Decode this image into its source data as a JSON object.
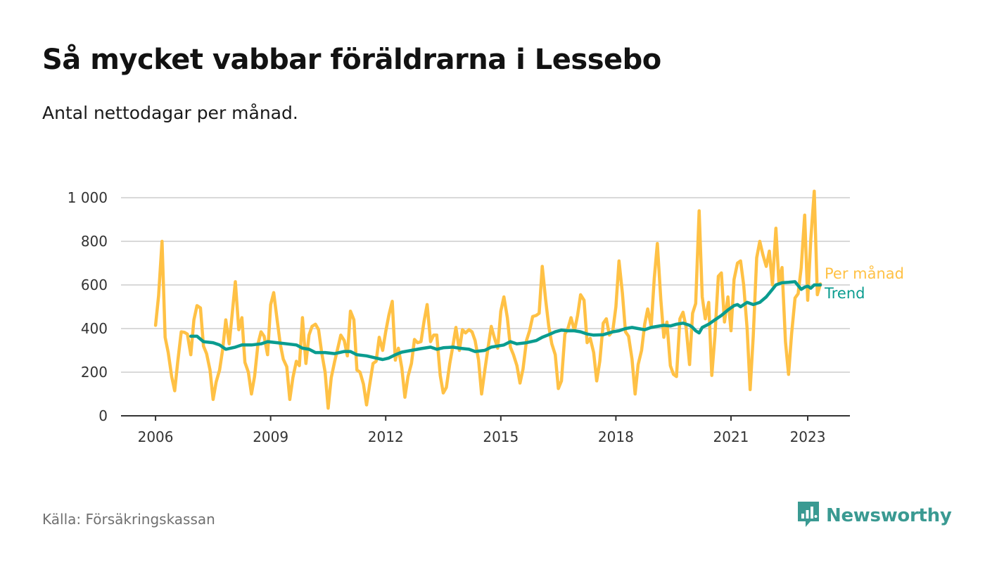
{
  "title": "Så mycket vabbar föräldrarna i Lessebo",
  "subtitle": "Antal nettodagar per månad.",
  "source": "Källa: Försäkringskassan",
  "brand": {
    "name": "Newsworthy",
    "icon": "newsworthy-logo-icon"
  },
  "colors": {
    "monthly": "#ffc145",
    "trend": "#0a9c8f",
    "grid": "#d9d9d9",
    "axis": "#333333"
  },
  "chart_data": {
    "type": "line",
    "x_unit": "decimal year",
    "ylim": [
      0,
      1000
    ],
    "xlim": [
      2005.1,
      2024.1
    ],
    "y_ticks": [
      0,
      200,
      400,
      600,
      800,
      1000
    ],
    "y_tick_labels": [
      "0",
      "200",
      "400",
      "600",
      "800",
      "1 000"
    ],
    "x_ticks": [
      2006,
      2009,
      2012,
      2015,
      2018,
      2021,
      2023
    ],
    "x_tick_labels": [
      "2006",
      "2009",
      "2012",
      "2015",
      "2018",
      "2021",
      "2023"
    ],
    "grid": "horizontal",
    "legend": "labels at right end of lines",
    "series": [
      {
        "name": "Per månad",
        "color_key": "monthly",
        "points": [
          [
            2006.0,
            415
          ],
          [
            2006.08,
            550
          ],
          [
            2006.17,
            800
          ],
          [
            2006.25,
            360
          ],
          [
            2006.33,
            290
          ],
          [
            2006.42,
            180
          ],
          [
            2006.5,
            115
          ],
          [
            2006.58,
            250
          ],
          [
            2006.67,
            385
          ],
          [
            2006.75,
            383
          ],
          [
            2006.83,
            375
          ],
          [
            2006.92,
            280
          ],
          [
            2007.0,
            440
          ],
          [
            2007.08,
            505
          ],
          [
            2007.17,
            495
          ],
          [
            2007.25,
            320
          ],
          [
            2007.33,
            285
          ],
          [
            2007.42,
            210
          ],
          [
            2007.5,
            75
          ],
          [
            2007.58,
            155
          ],
          [
            2007.67,
            210
          ],
          [
            2007.75,
            305
          ],
          [
            2007.83,
            440
          ],
          [
            2007.92,
            330
          ],
          [
            2008.0,
            470
          ],
          [
            2008.08,
            615
          ],
          [
            2008.17,
            395
          ],
          [
            2008.25,
            450
          ],
          [
            2008.33,
            245
          ],
          [
            2008.42,
            200
          ],
          [
            2008.5,
            100
          ],
          [
            2008.58,
            180
          ],
          [
            2008.67,
            330
          ],
          [
            2008.75,
            385
          ],
          [
            2008.83,
            365
          ],
          [
            2008.92,
            280
          ],
          [
            2009.0,
            510
          ],
          [
            2009.08,
            565
          ],
          [
            2009.17,
            440
          ],
          [
            2009.25,
            330
          ],
          [
            2009.33,
            260
          ],
          [
            2009.42,
            225
          ],
          [
            2009.5,
            75
          ],
          [
            2009.58,
            175
          ],
          [
            2009.67,
            250
          ],
          [
            2009.75,
            230
          ],
          [
            2009.83,
            450
          ],
          [
            2009.92,
            240
          ],
          [
            2010.0,
            370
          ],
          [
            2010.08,
            410
          ],
          [
            2010.17,
            420
          ],
          [
            2010.25,
            395
          ],
          [
            2010.33,
            290
          ],
          [
            2010.42,
            200
          ],
          [
            2010.5,
            35
          ],
          [
            2010.58,
            175
          ],
          [
            2010.67,
            250
          ],
          [
            2010.75,
            310
          ],
          [
            2010.83,
            370
          ],
          [
            2010.92,
            345
          ],
          [
            2011.0,
            275
          ],
          [
            2011.08,
            480
          ],
          [
            2011.17,
            440
          ],
          [
            2011.25,
            210
          ],
          [
            2011.33,
            200
          ],
          [
            2011.42,
            145
          ],
          [
            2011.5,
            50
          ],
          [
            2011.58,
            140
          ],
          [
            2011.67,
            240
          ],
          [
            2011.75,
            250
          ],
          [
            2011.83,
            360
          ],
          [
            2011.92,
            300
          ],
          [
            2012.0,
            385
          ],
          [
            2012.08,
            460
          ],
          [
            2012.17,
            525
          ],
          [
            2012.25,
            255
          ],
          [
            2012.33,
            310
          ],
          [
            2012.42,
            220
          ],
          [
            2012.5,
            85
          ],
          [
            2012.58,
            180
          ],
          [
            2012.67,
            240
          ],
          [
            2012.75,
            350
          ],
          [
            2012.83,
            335
          ],
          [
            2012.92,
            340
          ],
          [
            2013.0,
            435
          ],
          [
            2013.08,
            510
          ],
          [
            2013.17,
            340
          ],
          [
            2013.25,
            370
          ],
          [
            2013.33,
            370
          ],
          [
            2013.42,
            185
          ],
          [
            2013.5,
            105
          ],
          [
            2013.58,
            130
          ],
          [
            2013.67,
            240
          ],
          [
            2013.75,
            320
          ],
          [
            2013.83,
            405
          ],
          [
            2013.92,
            300
          ],
          [
            2014.0,
            395
          ],
          [
            2014.08,
            380
          ],
          [
            2014.17,
            395
          ],
          [
            2014.25,
            385
          ],
          [
            2014.33,
            345
          ],
          [
            2014.42,
            255
          ],
          [
            2014.5,
            100
          ],
          [
            2014.58,
            205
          ],
          [
            2014.67,
            315
          ],
          [
            2014.75,
            410
          ],
          [
            2014.83,
            360
          ],
          [
            2014.92,
            310
          ],
          [
            2015.0,
            480
          ],
          [
            2015.08,
            545
          ],
          [
            2015.17,
            450
          ],
          [
            2015.25,
            315
          ],
          [
            2015.33,
            280
          ],
          [
            2015.42,
            230
          ],
          [
            2015.5,
            150
          ],
          [
            2015.58,
            215
          ],
          [
            2015.67,
            345
          ],
          [
            2015.75,
            390
          ],
          [
            2015.83,
            455
          ],
          [
            2015.92,
            460
          ],
          [
            2016.0,
            470
          ],
          [
            2016.08,
            685
          ],
          [
            2016.17,
            530
          ],
          [
            2016.25,
            410
          ],
          [
            2016.33,
            330
          ],
          [
            2016.42,
            280
          ],
          [
            2016.5,
            125
          ],
          [
            2016.58,
            160
          ],
          [
            2016.67,
            375
          ],
          [
            2016.75,
            400
          ],
          [
            2016.83,
            450
          ],
          [
            2016.92,
            390
          ],
          [
            2017.0,
            460
          ],
          [
            2017.08,
            555
          ],
          [
            2017.17,
            530
          ],
          [
            2017.25,
            335
          ],
          [
            2017.33,
            355
          ],
          [
            2017.42,
            290
          ],
          [
            2017.5,
            160
          ],
          [
            2017.58,
            250
          ],
          [
            2017.67,
            425
          ],
          [
            2017.75,
            445
          ],
          [
            2017.83,
            370
          ],
          [
            2017.92,
            390
          ],
          [
            2018.0,
            500
          ],
          [
            2018.08,
            710
          ],
          [
            2018.17,
            560
          ],
          [
            2018.25,
            385
          ],
          [
            2018.33,
            365
          ],
          [
            2018.42,
            260
          ],
          [
            2018.5,
            100
          ],
          [
            2018.58,
            235
          ],
          [
            2018.67,
            300
          ],
          [
            2018.75,
            420
          ],
          [
            2018.83,
            490
          ],
          [
            2018.92,
            410
          ],
          [
            2019.0,
            630
          ],
          [
            2019.08,
            790
          ],
          [
            2019.17,
            535
          ],
          [
            2019.25,
            360
          ],
          [
            2019.33,
            430
          ],
          [
            2019.42,
            230
          ],
          [
            2019.5,
            190
          ],
          [
            2019.58,
            180
          ],
          [
            2019.67,
            445
          ],
          [
            2019.75,
            475
          ],
          [
            2019.83,
            405
          ],
          [
            2019.92,
            235
          ],
          [
            2020.0,
            470
          ],
          [
            2020.08,
            515
          ],
          [
            2020.17,
            940
          ],
          [
            2020.25,
            545
          ],
          [
            2020.33,
            445
          ],
          [
            2020.42,
            520
          ],
          [
            2020.5,
            185
          ],
          [
            2020.58,
            365
          ],
          [
            2020.67,
            640
          ],
          [
            2020.75,
            655
          ],
          [
            2020.83,
            430
          ],
          [
            2020.92,
            545
          ],
          [
            2021.0,
            390
          ],
          [
            2021.08,
            625
          ],
          [
            2021.17,
            700
          ],
          [
            2021.25,
            710
          ],
          [
            2021.33,
            600
          ],
          [
            2021.42,
            400
          ],
          [
            2021.5,
            120
          ],
          [
            2021.58,
            365
          ],
          [
            2021.67,
            725
          ],
          [
            2021.75,
            800
          ],
          [
            2021.83,
            740
          ],
          [
            2021.92,
            685
          ],
          [
            2022.0,
            755
          ],
          [
            2022.08,
            600
          ],
          [
            2022.17,
            860
          ],
          [
            2022.25,
            610
          ],
          [
            2022.33,
            680
          ],
          [
            2022.42,
            340
          ],
          [
            2022.5,
            190
          ],
          [
            2022.58,
            375
          ],
          [
            2022.67,
            540
          ],
          [
            2022.75,
            560
          ],
          [
            2022.83,
            680
          ],
          [
            2022.92,
            920
          ],
          [
            2023.0,
            530
          ],
          [
            2023.08,
            810
          ],
          [
            2023.17,
            1030
          ],
          [
            2023.25,
            555
          ],
          [
            2023.33,
            605
          ]
        ]
      },
      {
        "name": "Trend",
        "color_key": "trend",
        "points": [
          [
            2006.92,
            365
          ],
          [
            2007.08,
            365
          ],
          [
            2007.25,
            340
          ],
          [
            2007.5,
            335
          ],
          [
            2007.67,
            325
          ],
          [
            2007.83,
            305
          ],
          [
            2008.08,
            315
          ],
          [
            2008.25,
            325
          ],
          [
            2008.5,
            325
          ],
          [
            2008.75,
            330
          ],
          [
            2008.92,
            340
          ],
          [
            2009.17,
            335
          ],
          [
            2009.42,
            330
          ],
          [
            2009.67,
            325
          ],
          [
            2009.83,
            310
          ],
          [
            2010.0,
            305
          ],
          [
            2010.17,
            290
          ],
          [
            2010.42,
            290
          ],
          [
            2010.67,
            285
          ],
          [
            2010.92,
            295
          ],
          [
            2011.08,
            295
          ],
          [
            2011.25,
            280
          ],
          [
            2011.5,
            275
          ],
          [
            2011.75,
            265
          ],
          [
            2011.92,
            258
          ],
          [
            2012.08,
            265
          ],
          [
            2012.25,
            280
          ],
          [
            2012.42,
            292
          ],
          [
            2012.67,
            300
          ],
          [
            2012.92,
            308
          ],
          [
            2013.17,
            315
          ],
          [
            2013.33,
            305
          ],
          [
            2013.5,
            312
          ],
          [
            2013.75,
            315
          ],
          [
            2013.92,
            310
          ],
          [
            2014.17,
            305
          ],
          [
            2014.33,
            295
          ],
          [
            2014.58,
            300
          ],
          [
            2014.75,
            315
          ],
          [
            2014.92,
            320
          ],
          [
            2015.08,
            325
          ],
          [
            2015.25,
            340
          ],
          [
            2015.42,
            330
          ],
          [
            2015.67,
            335
          ],
          [
            2015.92,
            345
          ],
          [
            2016.08,
            360
          ],
          [
            2016.25,
            372
          ],
          [
            2016.42,
            385
          ],
          [
            2016.58,
            393
          ],
          [
            2016.75,
            390
          ],
          [
            2016.92,
            390
          ],
          [
            2017.08,
            385
          ],
          [
            2017.25,
            375
          ],
          [
            2017.42,
            370
          ],
          [
            2017.67,
            372
          ],
          [
            2017.92,
            385
          ],
          [
            2018.08,
            390
          ],
          [
            2018.25,
            400
          ],
          [
            2018.42,
            405
          ],
          [
            2018.58,
            400
          ],
          [
            2018.75,
            395
          ],
          [
            2018.92,
            405
          ],
          [
            2019.08,
            410
          ],
          [
            2019.25,
            415
          ],
          [
            2019.42,
            412
          ],
          [
            2019.58,
            420
          ],
          [
            2019.75,
            425
          ],
          [
            2019.92,
            415
          ],
          [
            2020.0,
            405
          ],
          [
            2020.08,
            390
          ],
          [
            2020.17,
            380
          ],
          [
            2020.25,
            405
          ],
          [
            2020.42,
            420
          ],
          [
            2020.58,
            440
          ],
          [
            2020.75,
            460
          ],
          [
            2020.92,
            485
          ],
          [
            2021.08,
            505
          ],
          [
            2021.17,
            510
          ],
          [
            2021.25,
            500
          ],
          [
            2021.42,
            520
          ],
          [
            2021.58,
            510
          ],
          [
            2021.75,
            520
          ],
          [
            2021.92,
            545
          ],
          [
            2022.08,
            580
          ],
          [
            2022.17,
            600
          ],
          [
            2022.33,
            610
          ],
          [
            2022.5,
            612
          ],
          [
            2022.67,
            615
          ],
          [
            2022.83,
            580
          ],
          [
            2022.92,
            590
          ],
          [
            2023.0,
            595
          ],
          [
            2023.08,
            585
          ],
          [
            2023.17,
            600
          ],
          [
            2023.33,
            600
          ]
        ]
      }
    ]
  }
}
